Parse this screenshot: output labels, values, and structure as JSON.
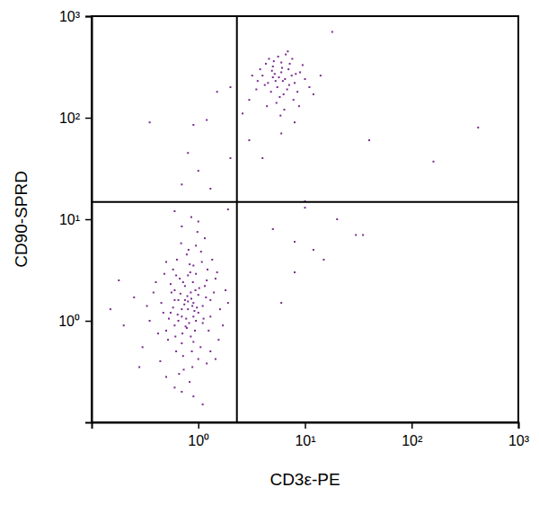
{
  "chart_data": {
    "type": "scatter",
    "x_label": "CD3ε-PE",
    "y_label": "CD90-SPRD",
    "log": true,
    "color": "#7b2a90",
    "marker": "square",
    "xlim": [
      0.1,
      1000
    ],
    "ylim": [
      0.1,
      1000
    ],
    "xticks": [
      {
        "value": 1,
        "label": "10⁰"
      },
      {
        "value": 10,
        "label": "10¹"
      },
      {
        "value": 100,
        "label": "10²"
      },
      {
        "value": 1000,
        "label": "10³"
      }
    ],
    "yticks": [
      {
        "value": 1,
        "label": "10⁰"
      },
      {
        "value": 10,
        "label": "10¹"
      },
      {
        "value": 100,
        "label": "10²"
      },
      {
        "value": 1000,
        "label": "10³"
      }
    ],
    "quadrant": {
      "x": 2.3,
      "y": 14.8
    },
    "x": [
      0.8,
      0.7,
      0.9,
      0.6,
      1.0,
      0.75,
      0.85,
      0.65,
      0.95,
      0.55,
      1.1,
      0.7,
      0.8,
      0.9,
      0.6,
      1.2,
      0.5,
      0.45,
      1.3,
      0.72,
      0.88,
      0.66,
      1.05,
      0.78,
      0.95,
      1.15,
      0.58,
      0.4,
      0.35,
      1.4,
      1.5,
      1.25,
      0.62,
      0.82,
      0.74,
      0.92,
      0.68,
      1.02,
      0.86,
      0.77,
      0.58,
      0.52,
      0.48,
      0.3,
      0.25,
      1.6,
      1.7,
      1.35,
      0.98,
      0.7,
      0.84,
      0.63,
      1.08,
      0.93,
      0.71,
      0.79,
      0.89,
      1.18,
      0.56,
      0.67,
      1.0,
      0.83,
      0.6,
      1.2,
      0.44,
      0.9,
      0.76,
      0.64,
      0.97,
      1.12,
      0.53,
      0.42,
      0.38,
      1.45,
      1.22,
      0.81,
      0.69,
      1.06,
      0.5,
      0.2,
      0.18,
      0.15,
      1.8,
      1.9,
      1.55,
      0.87,
      0.73,
      1.3,
      0.61,
      0.94,
      0.8,
      0.7,
      0.9,
      0.85,
      0.65,
      0.75,
      1.0,
      0.78,
      0.88,
      0.72,
      0.6,
      1.1,
      0.55,
      1.3,
      0.95,
      0.83,
      0.62,
      1.15,
      0.47,
      0.33,
      0.86,
      0.6,
      1.0,
      1.9,
      0.5,
      0.9,
      1.1,
      0.7,
      0.28,
      1.45,
      5,
      6,
      4.5,
      7,
      5.5,
      6.5,
      4,
      8,
      5,
      6,
      7.5,
      4.8,
      5.8,
      6.8,
      3.8,
      9,
      5.2,
      6.2,
      4.2,
      7.2,
      5.6,
      6.6,
      4.6,
      8.5,
      10,
      3.5,
      3.2,
      11,
      5.4,
      6.4,
      7.8,
      4.4,
      5.9,
      9.5,
      6.9,
      5.1,
      4.9,
      6.1,
      5.7,
      7.1,
      8.2,
      3.6,
      4.3,
      6.3,
      5.3,
      12,
      14,
      7.6,
      3.0,
      8.8,
      2.0,
      1.5,
      1.2,
      0.9,
      0.35,
      0.8,
      1.0,
      1.3,
      0.7,
      2.0,
      2.6,
      3,
      4,
      6,
      8,
      10,
      5,
      8,
      12,
      20,
      30,
      35,
      8,
      15,
      6,
      40,
      160,
      420,
      18,
      10
    ],
    "values": [
      1.3,
      1.1,
      1.5,
      0.9,
      1.8,
      2.2,
      0.7,
      1.6,
      1.0,
      1.2,
      1.4,
      0.6,
      2.8,
      3.5,
      2.0,
      2.5,
      0.8,
      1.5,
      1.1,
      0.45,
      0.35,
      0.3,
      0.55,
      4.5,
      5.5,
      6.5,
      3.2,
      2.4,
      1.0,
      1.9,
      3.0,
      0.8,
      0.5,
      0.95,
      1.45,
      1.25,
      1.85,
      2.1,
      1.65,
      1.05,
      1.35,
      0.65,
      2.9,
      0.55,
      1.7,
      1.3,
      0.9,
      4.0,
      7.5,
      8.5,
      3.0,
      4.0,
      3.8,
      0.8,
      0.75,
      1.75,
      2.4,
      1.7,
      1.9,
      2.6,
      0.42,
      0.25,
      0.22,
      0.38,
      0.4,
      0.62,
      0.88,
      1.15,
      1.35,
      1.05,
      1.05,
      0.75,
      1.9,
      2.6,
      3.2,
      5.0,
      5.8,
      4.8,
      3.8,
      0.9,
      2.5,
      1.3,
      2.0,
      1.5,
      0.65,
      0.5,
      0.33,
      0.5,
      0.7,
      2.0,
      1.55,
      1.3,
      1.1,
      1.9,
      1.0,
      1.6,
      1.2,
      0.85,
      1.4,
      2.4,
      1.6,
      0.95,
      2.3,
      1.6,
      2.9,
      3.6,
      2.8,
      2.2,
      1.2,
      1.4,
      10.5,
      12,
      9.5,
      12.5,
      0.28,
      0.18,
      0.15,
      0.2,
      0.35,
      0.42,
      250,
      280,
      220,
      300,
      200,
      240,
      260,
      220,
      320,
      350,
      260,
      180,
      160,
      190,
      300,
      280,
      270,
      230,
      210,
      340,
      400,
      420,
      380,
      180,
      240,
      190,
      260,
      200,
      140,
      120,
      150,
      130,
      105,
      330,
      450,
      360,
      290,
      310,
      250,
      210,
      270,
      230,
      340,
      170,
      230,
      170,
      260,
      380,
      150,
      130,
      200,
      180,
      95,
      85,
      90,
      45,
      30,
      20,
      22,
      40,
      110,
      60,
      40,
      70,
      90,
      15,
      8,
      6,
      5,
      10,
      7,
      7,
      3,
      4,
      1.5,
      60,
      37,
      80,
      700,
      13
    ]
  }
}
